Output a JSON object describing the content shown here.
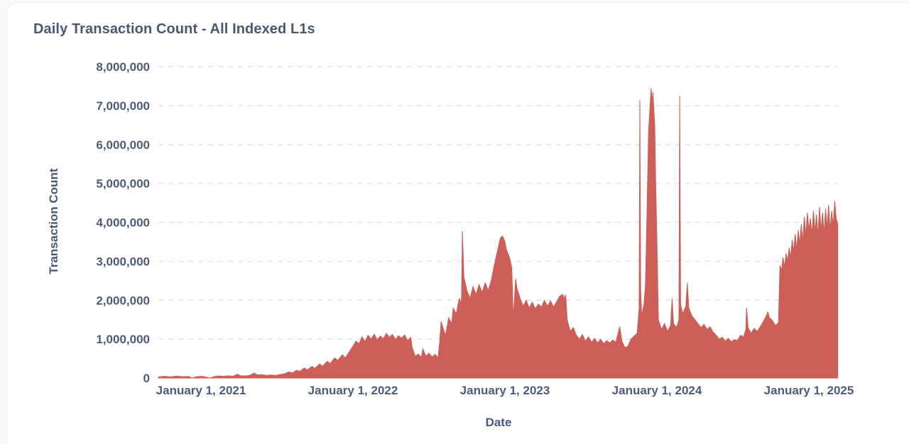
{
  "card": {
    "title": "Daily Transaction Count - All Indexed L1s"
  },
  "colors": {
    "area_fill": "#cd5e58",
    "title_text": "#4a5878",
    "tick_text": "#4d5b7b",
    "grid_line": "#e3e3e6",
    "card_border": "#ececf0",
    "card_background": "#ffffff"
  },
  "chart_data": {
    "type": "area",
    "title": "Daily Transaction Count - All Indexed L1s",
    "xlabel": "Date",
    "ylabel": "Transaction Count",
    "legend": "none",
    "grid": {
      "orientation": "horizontal",
      "style": "dashed",
      "color": "#e3e3e6"
    },
    "ylim": [
      0,
      8000000
    ],
    "xlim_years": [
      2020.72,
      2025.19
    ],
    "y_ticks": [
      {
        "value": 0,
        "label": "0"
      },
      {
        "value": 1000000,
        "label": "1,000,000"
      },
      {
        "value": 2000000,
        "label": "2,000,000"
      },
      {
        "value": 3000000,
        "label": "3,000,000"
      },
      {
        "value": 4000000,
        "label": "4,000,000"
      },
      {
        "value": 5000000,
        "label": "5,000,000"
      },
      {
        "value": 6000000,
        "label": "6,000,000"
      },
      {
        "value": 7000000,
        "label": "7,000,000"
      },
      {
        "value": 8000000,
        "label": "8,000,000"
      }
    ],
    "x_ticks": [
      {
        "year": 2021,
        "label": "January 1, 2021"
      },
      {
        "year": 2022,
        "label": "January 1, 2022"
      },
      {
        "year": 2023,
        "label": "January 1, 2023"
      },
      {
        "year": 2024,
        "label": "January 1, 2024"
      },
      {
        "year": 2025,
        "label": "January 1, 2025"
      }
    ],
    "series": [
      {
        "name": "daily-transaction-count",
        "color": "#cd5e58",
        "points": [
          [
            2020.72,
            30000
          ],
          [
            2020.76,
            45000
          ],
          [
            2020.8,
            30000
          ],
          [
            2020.84,
            50000
          ],
          [
            2020.88,
            35000
          ],
          [
            2020.92,
            40000
          ],
          [
            2020.94,
            0
          ],
          [
            2020.97,
            35000
          ],
          [
            2021.0,
            45000
          ],
          [
            2021.03,
            30000
          ],
          [
            2021.06,
            0
          ],
          [
            2021.09,
            40000
          ],
          [
            2021.12,
            55000
          ],
          [
            2021.15,
            40000
          ],
          [
            2021.18,
            60000
          ],
          [
            2021.21,
            45000
          ],
          [
            2021.24,
            100000
          ],
          [
            2021.26,
            60000
          ],
          [
            2021.29,
            55000
          ],
          [
            2021.32,
            70000
          ],
          [
            2021.35,
            130000
          ],
          [
            2021.37,
            80000
          ],
          [
            2021.4,
            90000
          ],
          [
            2021.43,
            65000
          ],
          [
            2021.46,
            80000
          ],
          [
            2021.49,
            70000
          ],
          [
            2021.52,
            90000
          ],
          [
            2021.55,
            110000
          ],
          [
            2021.58,
            160000
          ],
          [
            2021.6,
            130000
          ],
          [
            2021.63,
            200000
          ],
          [
            2021.65,
            170000
          ],
          [
            2021.68,
            260000
          ],
          [
            2021.7,
            210000
          ],
          [
            2021.73,
            300000
          ],
          [
            2021.75,
            250000
          ],
          [
            2021.78,
            360000
          ],
          [
            2021.8,
            300000
          ],
          [
            2021.83,
            430000
          ],
          [
            2021.85,
            370000
          ],
          [
            2021.88,
            520000
          ],
          [
            2021.9,
            450000
          ],
          [
            2021.93,
            600000
          ],
          [
            2021.95,
            520000
          ],
          [
            2021.98,
            700000
          ],
          [
            2022.0,
            820000
          ],
          [
            2022.02,
            950000
          ],
          [
            2022.04,
            880000
          ],
          [
            2022.06,
            1060000
          ],
          [
            2022.08,
            940000
          ],
          [
            2022.1,
            1100000
          ],
          [
            2022.12,
            1000000
          ],
          [
            2022.14,
            1130000
          ],
          [
            2022.16,
            980000
          ],
          [
            2022.18,
            1080000
          ],
          [
            2022.2,
            1010000
          ],
          [
            2022.22,
            1150000
          ],
          [
            2022.24,
            1040000
          ],
          [
            2022.26,
            1120000
          ],
          [
            2022.28,
            990000
          ],
          [
            2022.3,
            1090000
          ],
          [
            2022.32,
            1020000
          ],
          [
            2022.34,
            1110000
          ],
          [
            2022.36,
            960000
          ],
          [
            2022.38,
            1050000
          ],
          [
            2022.39,
            780000
          ],
          [
            2022.41,
            560000
          ],
          [
            2022.43,
            620000
          ],
          [
            2022.45,
            530000
          ],
          [
            2022.46,
            750000
          ],
          [
            2022.48,
            560000
          ],
          [
            2022.5,
            640000
          ],
          [
            2022.52,
            540000
          ],
          [
            2022.54,
            610000
          ],
          [
            2022.56,
            520000
          ],
          [
            2022.57,
            900000
          ],
          [
            2022.58,
            1450000
          ],
          [
            2022.6,
            1200000
          ],
          [
            2022.61,
            1100000
          ],
          [
            2022.63,
            1550000
          ],
          [
            2022.65,
            1400000
          ],
          [
            2022.66,
            1800000
          ],
          [
            2022.68,
            1650000
          ],
          [
            2022.7,
            2050000
          ],
          [
            2022.71,
            1900000
          ],
          [
            2022.715,
            2100000
          ],
          [
            2022.72,
            3780000
          ],
          [
            2022.73,
            2600000
          ],
          [
            2022.75,
            2250000
          ],
          [
            2022.77,
            2050000
          ],
          [
            2022.79,
            2350000
          ],
          [
            2022.81,
            2150000
          ],
          [
            2022.83,
            2400000
          ],
          [
            2022.85,
            2200000
          ],
          [
            2022.87,
            2450000
          ],
          [
            2022.89,
            2250000
          ],
          [
            2022.91,
            2500000
          ],
          [
            2022.93,
            2900000
          ],
          [
            2022.95,
            3250000
          ],
          [
            2022.97,
            3600000
          ],
          [
            2022.985,
            3650000
          ],
          [
            2023.0,
            3500000
          ],
          [
            2023.01,
            3300000
          ],
          [
            2023.03,
            3100000
          ],
          [
            2023.045,
            2850000
          ],
          [
            2023.055,
            1500000
          ],
          [
            2023.07,
            2550000
          ],
          [
            2023.08,
            2300000
          ],
          [
            2023.1,
            2050000
          ],
          [
            2023.12,
            1850000
          ],
          [
            2023.14,
            2000000
          ],
          [
            2023.16,
            1800000
          ],
          [
            2023.18,
            1950000
          ],
          [
            2023.2,
            1780000
          ],
          [
            2023.22,
            1900000
          ],
          [
            2023.24,
            1820000
          ],
          [
            2023.26,
            2000000
          ],
          [
            2023.28,
            1850000
          ],
          [
            2023.3,
            1980000
          ],
          [
            2023.32,
            1830000
          ],
          [
            2023.34,
            1960000
          ],
          [
            2023.36,
            2100000
          ],
          [
            2023.38,
            2150000
          ],
          [
            2023.39,
            2050000
          ],
          [
            2023.4,
            2130000
          ],
          [
            2023.41,
            1500000
          ],
          [
            2023.43,
            1200000
          ],
          [
            2023.45,
            1300000
          ],
          [
            2023.47,
            1100000
          ],
          [
            2023.49,
            1000000
          ],
          [
            2023.51,
            1120000
          ],
          [
            2023.53,
            950000
          ],
          [
            2023.55,
            1060000
          ],
          [
            2023.57,
            920000
          ],
          [
            2023.59,
            1020000
          ],
          [
            2023.61,
            900000
          ],
          [
            2023.63,
            1000000
          ],
          [
            2023.65,
            880000
          ],
          [
            2023.67,
            960000
          ],
          [
            2023.69,
            900000
          ],
          [
            2023.71,
            980000
          ],
          [
            2023.73,
            920000
          ],
          [
            2023.755,
            1320000
          ],
          [
            2023.77,
            950000
          ],
          [
            2023.79,
            780000
          ],
          [
            2023.81,
            820000
          ],
          [
            2023.83,
            1000000
          ],
          [
            2023.85,
            1080000
          ],
          [
            2023.87,
            1150000
          ],
          [
            2023.883,
            1800000
          ],
          [
            2023.888,
            7150000
          ],
          [
            2023.893,
            2300000
          ],
          [
            2023.9,
            1600000
          ],
          [
            2023.915,
            1900000
          ],
          [
            2023.925,
            2400000
          ],
          [
            2023.935,
            4300000
          ],
          [
            2023.945,
            6300000
          ],
          [
            2023.955,
            7000000
          ],
          [
            2023.962,
            7450000
          ],
          [
            2023.968,
            7100000
          ],
          [
            2023.974,
            7350000
          ],
          [
            2023.98,
            6900000
          ],
          [
            2023.986,
            6500000
          ],
          [
            2023.992,
            5000000
          ],
          [
            2024.0,
            3600000
          ],
          [
            2024.01,
            1500000
          ],
          [
            2024.03,
            1250000
          ],
          [
            2024.05,
            1400000
          ],
          [
            2024.07,
            1200000
          ],
          [
            2024.09,
            1350000
          ],
          [
            2024.1,
            2050000
          ],
          [
            2024.11,
            1400000
          ],
          [
            2024.13,
            1300000
          ],
          [
            2024.145,
            1500000
          ],
          [
            2024.15,
            7250000
          ],
          [
            2024.156,
            1900000
          ],
          [
            2024.17,
            1650000
          ],
          [
            2024.19,
            1850000
          ],
          [
            2024.2,
            2450000
          ],
          [
            2024.21,
            1800000
          ],
          [
            2024.23,
            1600000
          ],
          [
            2024.25,
            1500000
          ],
          [
            2024.27,
            1400000
          ],
          [
            2024.29,
            1300000
          ],
          [
            2024.31,
            1380000
          ],
          [
            2024.33,
            1250000
          ],
          [
            2024.35,
            1320000
          ],
          [
            2024.37,
            1180000
          ],
          [
            2024.39,
            1100000
          ],
          [
            2024.41,
            1000000
          ],
          [
            2024.43,
            1050000
          ],
          [
            2024.45,
            950000
          ],
          [
            2024.47,
            1020000
          ],
          [
            2024.49,
            930000
          ],
          [
            2024.51,
            990000
          ],
          [
            2024.53,
            960000
          ],
          [
            2024.55,
            1100000
          ],
          [
            2024.57,
            1050000
          ],
          [
            2024.585,
            1250000
          ],
          [
            2024.59,
            1800000
          ],
          [
            2024.6,
            1300000
          ],
          [
            2024.62,
            1150000
          ],
          [
            2024.64,
            1280000
          ],
          [
            2024.66,
            1200000
          ],
          [
            2024.68,
            1320000
          ],
          [
            2024.7,
            1450000
          ],
          [
            2024.72,
            1600000
          ],
          [
            2024.73,
            1700000
          ],
          [
            2024.74,
            1550000
          ],
          [
            2024.76,
            1480000
          ],
          [
            2024.78,
            1350000
          ],
          [
            2024.8,
            1420000
          ],
          [
            2024.81,
            2900000
          ],
          [
            2024.82,
            2750000
          ],
          [
            2024.83,
            3100000
          ],
          [
            2024.84,
            2850000
          ],
          [
            2024.85,
            3200000
          ],
          [
            2024.86,
            3000000
          ],
          [
            2024.87,
            3350000
          ],
          [
            2024.88,
            3100000
          ],
          [
            2024.89,
            3550000
          ],
          [
            2024.9,
            3250000
          ],
          [
            2024.91,
            3700000
          ],
          [
            2024.92,
            3300000
          ],
          [
            2024.93,
            3800000
          ],
          [
            2024.94,
            3450000
          ],
          [
            2024.95,
            3950000
          ],
          [
            2024.96,
            3500000
          ],
          [
            2024.97,
            4150000
          ],
          [
            2024.98,
            3650000
          ],
          [
            2024.99,
            4250000
          ],
          [
            2025.0,
            3800000
          ],
          [
            2025.01,
            4100000
          ],
          [
            2025.02,
            3700000
          ],
          [
            2025.03,
            4300000
          ],
          [
            2025.04,
            3750000
          ],
          [
            2025.05,
            4200000
          ],
          [
            2025.06,
            3650000
          ],
          [
            2025.07,
            4400000
          ],
          [
            2025.08,
            3800000
          ],
          [
            2025.09,
            4250000
          ],
          [
            2025.1,
            3700000
          ],
          [
            2025.11,
            4350000
          ],
          [
            2025.12,
            3850000
          ],
          [
            2025.13,
            4450000
          ],
          [
            2025.14,
            3800000
          ],
          [
            2025.15,
            4300000
          ],
          [
            2025.16,
            3900000
          ],
          [
            2025.17,
            4550000
          ],
          [
            2025.18,
            4100000
          ],
          [
            2025.19,
            3950000
          ]
        ]
      }
    ]
  }
}
